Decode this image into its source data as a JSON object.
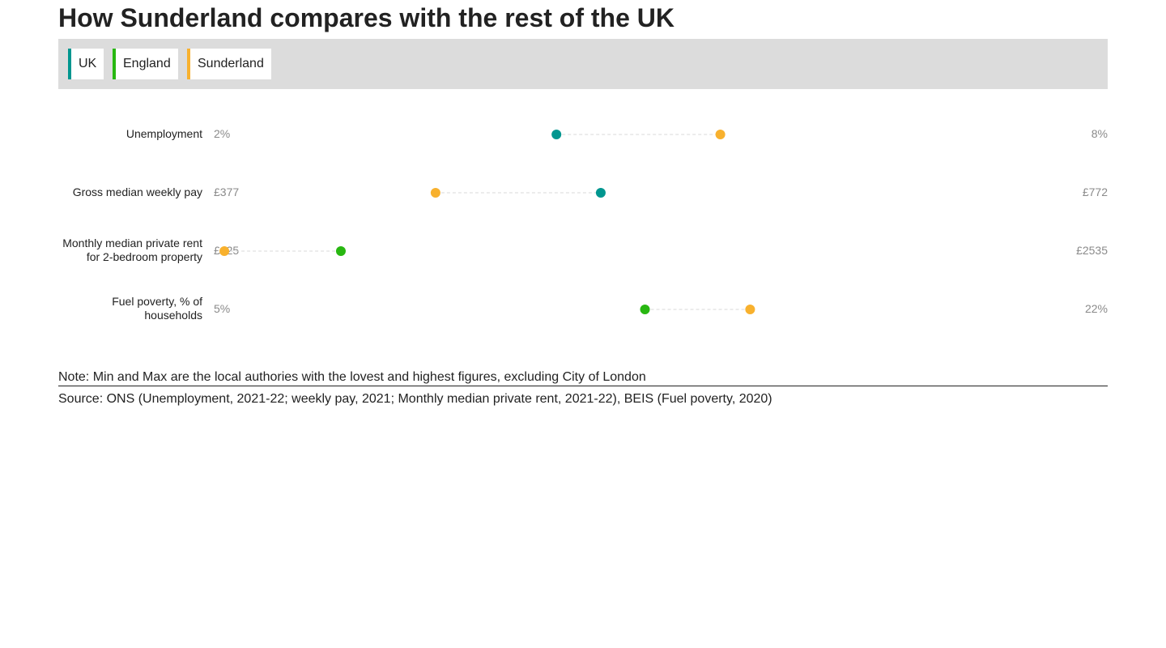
{
  "title": "How Sunderland compares with the rest of the UK",
  "legend": [
    {
      "label": "UK",
      "color": "#00968f"
    },
    {
      "label": "England",
      "color": "#28b711"
    },
    {
      "label": "Sunderland",
      "color": "#f8b12e"
    }
  ],
  "chart_data": {
    "type": "dot-range",
    "series": [
      {
        "name": "UK",
        "color": "#00968f"
      },
      {
        "name": "England",
        "color": "#28b711"
      },
      {
        "name": "Sunderland",
        "color": "#f8b12e"
      }
    ],
    "rows": [
      {
        "label": "Unemployment",
        "min": 2,
        "max": 8,
        "min_label": "2%",
        "max_label": "8%",
        "points": [
          {
            "series": "UK",
            "value": 4.3
          },
          {
            "series": "Sunderland",
            "value": 5.4
          }
        ]
      },
      {
        "label": "Gross median weekly pay",
        "min": 377,
        "max": 772,
        "min_label": "£377",
        "max_label": "£772",
        "points": [
          {
            "series": "Sunderland",
            "value": 475
          },
          {
            "series": "UK",
            "value": 548
          }
        ]
      },
      {
        "label": "Monthly median private rent for 2-bedroom property",
        "min": 425,
        "max": 2535,
        "min_label": "£425",
        "max_label": "£2535",
        "points": [
          {
            "series": "Sunderland",
            "value": 450
          },
          {
            "series": "England",
            "value": 725
          }
        ]
      },
      {
        "label": "Fuel poverty, % of households",
        "min": 5,
        "max": 22,
        "min_label": "5%",
        "max_label": "22%",
        "points": [
          {
            "series": "England",
            "value": 13.2
          },
          {
            "series": "Sunderland",
            "value": 15.2
          }
        ]
      }
    ]
  },
  "note": "Note: Min and Max are the local authories with the lovest and highest figures, excluding City of London",
  "source": "Source: ONS (Unemployment, 2021-22; weekly pay, 2021; Monthly median private rent, 2021-22), BEIS (Fuel poverty, 2020)"
}
